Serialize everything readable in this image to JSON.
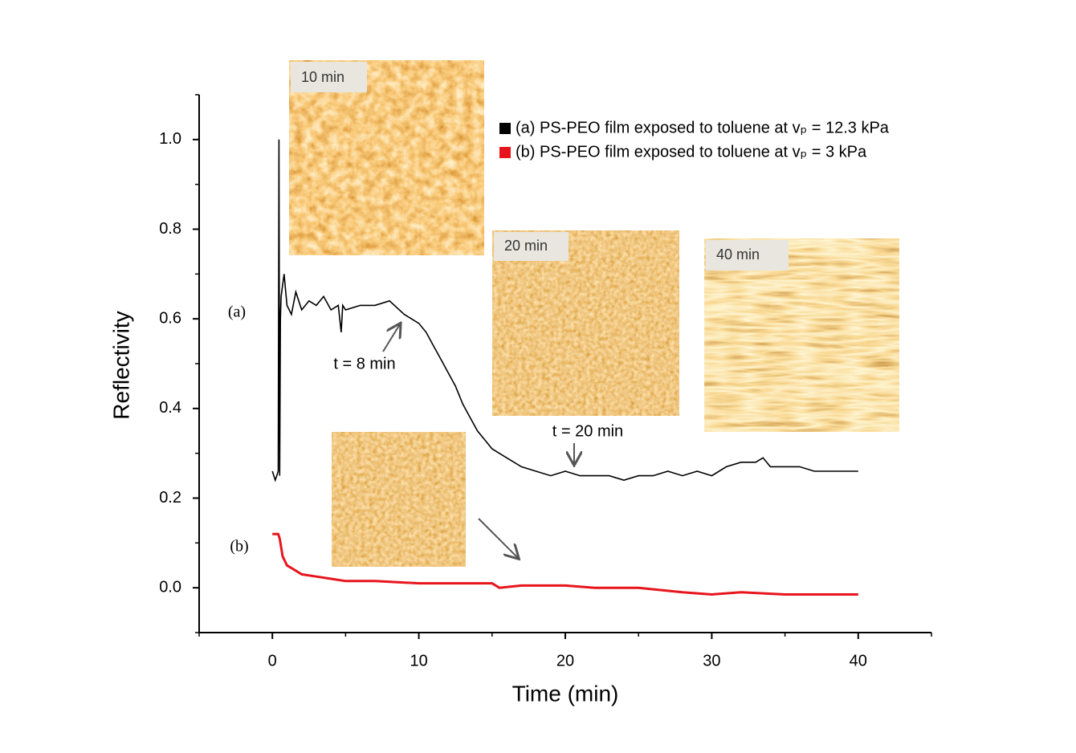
{
  "chart_data": {
    "type": "line",
    "xlabel": "Time (min)",
    "ylabel": "Reflectivity",
    "xlim": [
      -5,
      45
    ],
    "ylim": [
      -0.1,
      1.1
    ],
    "xticks": [
      0,
      10,
      20,
      30,
      40
    ],
    "xminorticks": [
      -5,
      5,
      15,
      25,
      35,
      45
    ],
    "yticks": [
      {
        "value": 0,
        "label": "0.0"
      },
      0.2,
      0.4,
      0.6,
      0.8,
      {
        "value": 1,
        "label": "1.0"
      }
    ],
    "yminorticks": [
      -0.1,
      0.1,
      0.3,
      0.5,
      0.7,
      0.9,
      1.1
    ],
    "grid": false,
    "series": [
      {
        "name": "(a) PS-PEO film exposed to toluene at vₚ = 12.3 kPa",
        "color": "#000000",
        "x": [
          0,
          0.2,
          0.4,
          0.45,
          0.5,
          0.55,
          0.6,
          0.8,
          1,
          1.3,
          1.6,
          2,
          2.5,
          3,
          3.5,
          4,
          4.5,
          4.7,
          4.8,
          5,
          6,
          7,
          8,
          9,
          9.5,
          10,
          10.5,
          11,
          11.5,
          12,
          12.5,
          13,
          13.5,
          14,
          14.5,
          15,
          15.5,
          16,
          17,
          18,
          19,
          20,
          21,
          22,
          23,
          24,
          25,
          26,
          27,
          28,
          29,
          30,
          31,
          32,
          33,
          33.5,
          34,
          35,
          36,
          37,
          38,
          39,
          40
        ],
        "values": [
          0.26,
          0.24,
          0.26,
          1.0,
          0.25,
          0.6,
          0.65,
          0.7,
          0.63,
          0.61,
          0.66,
          0.62,
          0.64,
          0.63,
          0.65,
          0.62,
          0.63,
          0.57,
          0.63,
          0.62,
          0.63,
          0.63,
          0.64,
          0.61,
          0.6,
          0.59,
          0.57,
          0.54,
          0.51,
          0.48,
          0.45,
          0.41,
          0.38,
          0.35,
          0.33,
          0.31,
          0.3,
          0.29,
          0.27,
          0.26,
          0.25,
          0.26,
          0.25,
          0.25,
          0.25,
          0.24,
          0.25,
          0.25,
          0.26,
          0.25,
          0.26,
          0.25,
          0.27,
          0.28,
          0.28,
          0.29,
          0.27,
          0.27,
          0.27,
          0.26,
          0.26,
          0.26,
          0.26
        ]
      },
      {
        "name": "(b) PS-PEO film exposed to toluene at vₚ = 3 kPa",
        "color": "#e8141c",
        "x": [
          0,
          0.4,
          0.5,
          0.7,
          1,
          1.5,
          2,
          3,
          4,
          5,
          7,
          10,
          12,
          15,
          15.5,
          17,
          20,
          22,
          25,
          28,
          30,
          32,
          35,
          38,
          40
        ],
        "values": [
          0.12,
          0.12,
          0.11,
          0.07,
          0.05,
          0.04,
          0.03,
          0.025,
          0.02,
          0.015,
          0.015,
          0.01,
          0.01,
          0.01,
          0.0,
          0.005,
          0.005,
          0.0,
          0.0,
          -0.01,
          -0.015,
          -0.01,
          -0.015,
          -0.015,
          -0.015
        ]
      }
    ],
    "annotations": [
      "(a)",
      "(b)",
      "t = 8 min",
      "t = 20 min"
    ],
    "inset_labels": [
      "10 min",
      "20 min",
      "40 min"
    ]
  }
}
